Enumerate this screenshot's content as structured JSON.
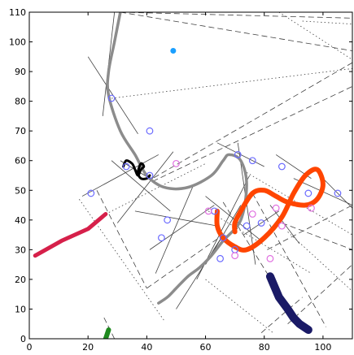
{
  "chart_data": {
    "type": "line",
    "xlim": [
      0,
      110
    ],
    "ylim": [
      0,
      110
    ],
    "xticks": [
      0,
      20,
      40,
      60,
      80,
      100
    ],
    "yticks": [
      0,
      10,
      20,
      30,
      40,
      50,
      60,
      70,
      80,
      90,
      100,
      110
    ],
    "grid": false,
    "colors": {
      "gray_curve": "#8c8c8c",
      "orange_curve": "#ff4500",
      "navy_segment": "#1a1a66",
      "crimson_segment": "#d6204a",
      "green_segment": "#1f8a1f",
      "black_curve": "#000000",
      "blue_marker": "#6a6aff",
      "magenta_marker": "#e070e0",
      "cyan_point": "#1a9fff",
      "construction_line": "#404040"
    },
    "series": [
      {
        "style": "gray-thick",
        "x": [
          31,
          29,
          27,
          27,
          31,
          36,
          40,
          46,
          54,
          62,
          66,
          68,
          72,
          74,
          72,
          66,
          62,
          58,
          54,
          50,
          47,
          44
        ],
        "y": [
          110,
          100,
          90,
          82,
          70,
          62,
          55,
          51,
          51,
          55,
          60,
          62,
          60,
          52,
          40,
          33,
          28,
          24,
          21,
          17,
          14,
          12
        ]
      },
      {
        "style": "orange-thick",
        "x": [
          64,
          64,
          66,
          70,
          74,
          80,
          86,
          90,
          94,
          98,
          100,
          98,
          94,
          88,
          84,
          80,
          76,
          72,
          70,
          70
        ],
        "y": [
          43,
          38,
          34,
          31,
          30,
          34,
          41,
          49,
          55,
          57,
          52,
          47,
          45,
          46,
          48,
          50,
          49,
          43,
          39,
          36
        ]
      },
      {
        "style": "navy-thick",
        "x": [
          82,
          85,
          88,
          90,
          92,
          95
        ],
        "y": [
          21,
          14,
          10,
          7,
          5,
          3
        ]
      },
      {
        "style": "crimson-thick",
        "x": [
          2,
          11,
          20,
          26
        ],
        "y": [
          28,
          33,
          37,
          42
        ]
      },
      {
        "style": "green-thick",
        "x": [
          26,
          27
        ],
        "y": [
          0,
          3
        ]
      },
      {
        "style": "black-curve",
        "x": [
          32,
          33,
          35,
          36,
          37,
          38,
          39,
          38,
          37,
          38,
          40,
          41
        ],
        "y": [
          58,
          60,
          59,
          57,
          55,
          57,
          58,
          59,
          56,
          54,
          54,
          55
        ]
      },
      {
        "style": "blue-circles",
        "x": [
          28,
          41,
          33,
          21,
          41,
          47,
          45,
          71,
          76,
          63,
          65,
          66,
          70,
          74,
          79,
          86,
          95,
          105
        ],
        "y": [
          81,
          70,
          58,
          49,
          55,
          40,
          34,
          62,
          60,
          43,
          27,
          34,
          30,
          38,
          39,
          58,
          49,
          49
        ]
      },
      {
        "style": "magenta-circles",
        "x": [
          50,
          61,
          84,
          86,
          82,
          76,
          70,
          96
        ],
        "y": [
          59,
          43,
          44,
          38,
          27,
          42,
          28,
          44
        ]
      },
      {
        "style": "cyan-dot",
        "x": [
          49
        ],
        "y": [
          97
        ]
      }
    ],
    "construction_dashed": [
      [
        [
          31,
          110
        ],
        [
          110,
          97
        ]
      ],
      [
        [
          31,
          110
        ],
        [
          110,
          108
        ]
      ],
      [
        [
          42,
          53
        ],
        [
          110,
          85
        ]
      ],
      [
        [
          110,
          93
        ],
        [
          42,
          54
        ]
      ],
      [
        [
          23,
          50
        ],
        [
          40,
          17
        ]
      ],
      [
        [
          40,
          17
        ],
        [
          66,
          35
        ]
      ],
      [
        [
          66,
          46
        ],
        [
          91,
          6
        ]
      ],
      [
        [
          76,
          49
        ],
        [
          101,
          4
        ]
      ],
      [
        [
          81,
          30
        ],
        [
          110,
          45
        ]
      ],
      [
        [
          86,
          39
        ],
        [
          110,
          30
        ]
      ],
      [
        [
          79,
          2
        ],
        [
          93,
          14
        ]
      ],
      [
        [
          29,
          0
        ],
        [
          25,
          8
        ]
      ],
      [
        [
          88,
          5
        ],
        [
          110,
          25
        ]
      ]
    ],
    "construction_dotted": [
      [
        [
          28,
          81
        ],
        [
          110,
          91
        ]
      ],
      [
        [
          26,
          42
        ],
        [
          60,
          59
        ]
      ],
      [
        [
          17,
          47
        ],
        [
          46,
          6
        ]
      ],
      [
        [
          85,
          110
        ],
        [
          110,
          94
        ]
      ],
      [
        [
          93,
          107
        ],
        [
          110,
          106
        ]
      ],
      [
        [
          61,
          43
        ],
        [
          96,
          22
        ]
      ],
      [
        [
          74,
          56
        ],
        [
          110,
          35
        ]
      ],
      [
        [
          60,
          20
        ],
        [
          83,
          2
        ]
      ],
      [
        [
          88,
          36
        ],
        [
          110,
          16
        ]
      ]
    ],
    "construction_solid": [
      [
        [
          20,
          95
        ],
        [
          37,
          69
        ]
      ],
      [
        [
          29,
          110
        ],
        [
          25,
          75
        ]
      ],
      [
        [
          18,
          48
        ],
        [
          44,
          62
        ]
      ],
      [
        [
          28,
          60
        ],
        [
          48,
          43
        ]
      ],
      [
        [
          31,
          60
        ],
        [
          46,
          51
        ]
      ],
      [
        [
          30,
          39
        ],
        [
          49,
          63
        ]
      ],
      [
        [
          36,
          43
        ],
        [
          64,
          38
        ]
      ],
      [
        [
          41,
          30
        ],
        [
          63,
          45
        ]
      ],
      [
        [
          43,
          22
        ],
        [
          56,
          52
        ]
      ],
      [
        [
          57,
          20
        ],
        [
          75,
          55
        ]
      ],
      [
        [
          60,
          48
        ],
        [
          79,
          33
        ]
      ],
      [
        [
          64,
          66
        ],
        [
          80,
          58
        ]
      ],
      [
        [
          71,
          66
        ],
        [
          77,
          25
        ]
      ],
      [
        [
          73,
          35
        ],
        [
          85,
          43
        ]
      ],
      [
        [
          82,
          45
        ],
        [
          92,
          32
        ]
      ],
      [
        [
          84,
          62
        ],
        [
          96,
          54
        ]
      ],
      [
        [
          90,
          54
        ],
        [
          110,
          45
        ]
      ],
      [
        [
          100,
          54
        ],
        [
          110,
          44
        ]
      ],
      [
        [
          50,
          10
        ],
        [
          66,
          35
        ]
      ],
      [
        [
          60,
          25
        ],
        [
          72,
          45
        ]
      ]
    ]
  }
}
